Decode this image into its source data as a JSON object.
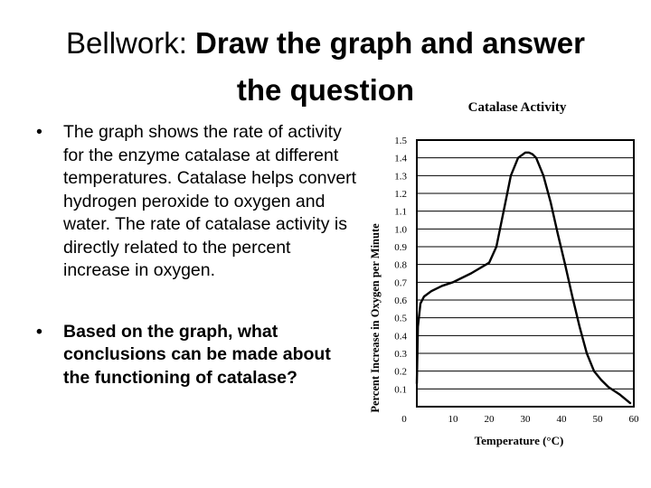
{
  "slide": {
    "title_regular": "Bellwork: ",
    "title_bold_line1": "Draw the graph and answer",
    "title_bold_line2": "the question",
    "bullet_symbol": "•",
    "bullet1": "The graph shows the rate of activity for the enzyme catalase at different temperatures. Catalase helps convert hydrogen peroxide to oxygen and water. The rate of catalase activity is directly related to the percent increase in oxygen.",
    "bullet2": "Based on the graph, what conclusions can be made about the functioning of catalase?"
  },
  "chart_data": {
    "type": "line",
    "title": "Catalase Activity",
    "xlabel": "Temperature (°C)",
    "ylabel": "Percent Increase in Oxygen per Minute",
    "x_ticks": [
      0,
      10,
      20,
      30,
      40,
      50,
      60
    ],
    "y_ticks": [
      "0.1",
      "0.2",
      "0.3",
      "0.4",
      "0.5",
      "0.6",
      "0.7",
      "0.8",
      "0.9",
      "1.0",
      "1.1",
      "1.2",
      "1.3",
      "1.4",
      "1.5"
    ],
    "xlim": [
      0,
      60
    ],
    "ylim": [
      0,
      1.5
    ],
    "grid": "horizontal",
    "legend": "none",
    "series": [
      {
        "x": [
          0,
          0.3,
          1,
          2,
          4,
          7,
          10,
          15,
          20,
          22,
          24,
          26,
          28,
          30,
          31,
          32,
          33,
          35,
          37,
          39,
          41,
          43,
          45,
          47,
          49,
          51,
          53,
          56,
          59
        ],
        "y": [
          0.13,
          0.45,
          0.58,
          0.62,
          0.65,
          0.68,
          0.7,
          0.75,
          0.81,
          0.9,
          1.1,
          1.3,
          1.4,
          1.43,
          1.43,
          1.42,
          1.4,
          1.3,
          1.15,
          0.97,
          0.8,
          0.62,
          0.45,
          0.3,
          0.2,
          0.15,
          0.11,
          0.07,
          0.02
        ]
      }
    ]
  }
}
